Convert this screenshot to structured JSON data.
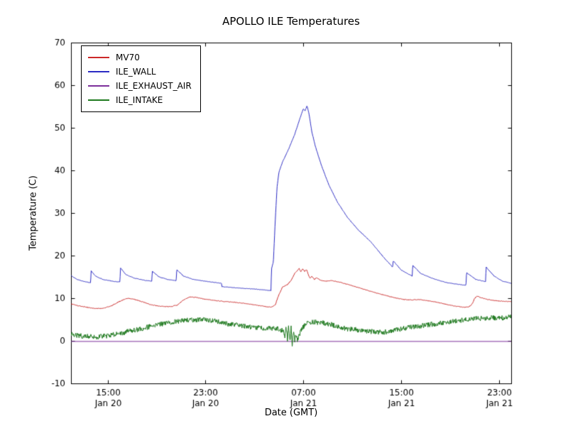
{
  "chart_data": {
    "type": "line",
    "title": "APOLLO ILE Temperatures",
    "xlabel": "Date (GMT)",
    "ylabel": "Temperature (C)",
    "x_unit": "hours since Jan 20 00:00 GMT",
    "x_range": [
      12,
      48
    ],
    "y_range": [
      -10,
      70
    ],
    "grid": false,
    "legend_position": "upper left",
    "yticks": [
      -10,
      0,
      10,
      20,
      30,
      40,
      50,
      60,
      70
    ],
    "xticks": [
      {
        "x": 15,
        "time": "15:00",
        "date": "Jan 20"
      },
      {
        "x": 23,
        "time": "23:00",
        "date": "Jan 20"
      },
      {
        "x": 31,
        "time": "07:00",
        "date": "Jan 21"
      },
      {
        "x": 39,
        "time": "15:00",
        "date": "Jan 21"
      },
      {
        "x": 47,
        "time": "23:00",
        "date": "Jan 21"
      }
    ],
    "series": [
      {
        "name": "MV70",
        "color": "#cc2929",
        "noise": 0.08,
        "points": [
          [
            12.0,
            8.7
          ],
          [
            12.6,
            8.2
          ],
          [
            13.2,
            7.9
          ],
          [
            13.9,
            7.6
          ],
          [
            14.6,
            7.6
          ],
          [
            15.3,
            8.2
          ],
          [
            16.0,
            9.3
          ],
          [
            16.6,
            10.0
          ],
          [
            17.1,
            9.8
          ],
          [
            17.8,
            9.2
          ],
          [
            18.5,
            8.5
          ],
          [
            19.3,
            8.1
          ],
          [
            20.1,
            8.0
          ],
          [
            20.7,
            8.4
          ],
          [
            21.2,
            9.6
          ],
          [
            21.7,
            10.3
          ],
          [
            22.2,
            10.2
          ],
          [
            22.9,
            9.8
          ],
          [
            23.7,
            9.5
          ],
          [
            24.6,
            9.2
          ],
          [
            25.5,
            9.0
          ],
          [
            26.4,
            8.7
          ],
          [
            27.3,
            8.3
          ],
          [
            28.0,
            8.0
          ],
          [
            28.4,
            7.9
          ],
          [
            28.7,
            8.4
          ],
          [
            29.0,
            10.8
          ],
          [
            29.3,
            12.6
          ],
          [
            29.7,
            13.2
          ],
          [
            30.0,
            14.2
          ],
          [
            30.3,
            15.8
          ],
          [
            30.5,
            16.4
          ],
          [
            30.65,
            17.0
          ],
          [
            30.8,
            16.2
          ],
          [
            30.95,
            16.9
          ],
          [
            31.1,
            16.3
          ],
          [
            31.25,
            16.8
          ],
          [
            31.4,
            15.6
          ],
          [
            31.55,
            14.7
          ],
          [
            31.7,
            15.2
          ],
          [
            31.9,
            14.4
          ],
          [
            32.1,
            14.8
          ],
          [
            32.4,
            14.2
          ],
          [
            32.8,
            14.0
          ],
          [
            33.3,
            14.1
          ],
          [
            33.8,
            13.9
          ],
          [
            34.3,
            13.5
          ],
          [
            34.9,
            13.0
          ],
          [
            35.6,
            12.4
          ],
          [
            36.3,
            11.8
          ],
          [
            37.0,
            11.2
          ],
          [
            37.8,
            10.6
          ],
          [
            38.5,
            10.1
          ],
          [
            39.2,
            9.7
          ],
          [
            39.9,
            9.6
          ],
          [
            40.5,
            9.7
          ],
          [
            41.2,
            9.4
          ],
          [
            42.0,
            9.0
          ],
          [
            42.8,
            8.5
          ],
          [
            43.5,
            8.1
          ],
          [
            44.1,
            7.9
          ],
          [
            44.5,
            7.9
          ],
          [
            44.8,
            8.6
          ],
          [
            45.0,
            9.9
          ],
          [
            45.2,
            10.5
          ],
          [
            45.5,
            10.2
          ],
          [
            45.9,
            9.8
          ],
          [
            46.5,
            9.5
          ],
          [
            47.2,
            9.3
          ],
          [
            48.0,
            9.2
          ]
        ]
      },
      {
        "name": "ILE_WALL",
        "color": "#2b2bc4",
        "noise": 0.06,
        "points": [
          [
            12.0,
            15.3
          ],
          [
            12.5,
            14.4
          ],
          [
            13.1,
            13.9
          ],
          [
            13.6,
            13.6
          ],
          [
            13.65,
            16.4
          ],
          [
            14.0,
            15.2
          ],
          [
            14.6,
            14.4
          ],
          [
            15.4,
            14.0
          ],
          [
            16.0,
            13.8
          ],
          [
            16.05,
            17.1
          ],
          [
            16.5,
            15.5
          ],
          [
            17.2,
            14.7
          ],
          [
            18.0,
            14.2
          ],
          [
            18.6,
            14.0
          ],
          [
            18.65,
            16.3
          ],
          [
            19.2,
            15.0
          ],
          [
            19.9,
            14.4
          ],
          [
            20.6,
            14.1
          ],
          [
            20.65,
            16.7
          ],
          [
            21.2,
            15.2
          ],
          [
            21.9,
            14.5
          ],
          [
            22.7,
            14.1
          ],
          [
            23.5,
            13.8
          ],
          [
            24.3,
            13.5
          ],
          [
            24.35,
            12.7
          ],
          [
            25.2,
            12.5
          ],
          [
            26.2,
            12.3
          ],
          [
            27.2,
            12.1
          ],
          [
            28.0,
            11.9
          ],
          [
            28.35,
            11.8
          ],
          [
            28.4,
            16.9
          ],
          [
            28.55,
            18.5
          ],
          [
            28.7,
            28.0
          ],
          [
            28.85,
            36.0
          ],
          [
            29.0,
            39.5
          ],
          [
            29.3,
            42.0
          ],
          [
            29.8,
            45.0
          ],
          [
            30.3,
            48.5
          ],
          [
            30.7,
            52.0
          ],
          [
            31.0,
            54.5
          ],
          [
            31.15,
            54.0
          ],
          [
            31.3,
            55.2
          ],
          [
            31.45,
            53.5
          ],
          [
            31.7,
            49.0
          ],
          [
            32.0,
            45.5
          ],
          [
            32.5,
            41.0
          ],
          [
            33.1,
            36.5
          ],
          [
            33.8,
            32.5
          ],
          [
            34.6,
            29.0
          ],
          [
            35.5,
            26.0
          ],
          [
            36.5,
            23.3
          ],
          [
            37.6,
            19.5
          ],
          [
            38.3,
            17.3
          ],
          [
            38.35,
            18.8
          ],
          [
            39.0,
            16.6
          ],
          [
            39.9,
            15.2
          ],
          [
            39.95,
            17.7
          ],
          [
            40.6,
            15.8
          ],
          [
            41.6,
            14.6
          ],
          [
            42.8,
            13.6
          ],
          [
            43.8,
            13.2
          ],
          [
            44.3,
            13.0
          ],
          [
            44.35,
            16.0
          ],
          [
            45.1,
            14.4
          ],
          [
            45.9,
            13.9
          ],
          [
            45.95,
            17.3
          ],
          [
            46.6,
            15.2
          ],
          [
            47.3,
            14.0
          ],
          [
            48.0,
            13.5
          ]
        ]
      },
      {
        "name": "ILE_EXHAUST_AIR",
        "color": "#7d2f9b",
        "noise": 0,
        "points": [
          [
            12.0,
            -0.15
          ],
          [
            48.0,
            -0.15
          ]
        ]
      },
      {
        "name": "ILE_INTAKE",
        "color": "#1f7a1f",
        "noise": 0.6,
        "points": [
          [
            12.0,
            1.5
          ],
          [
            12.6,
            1.2
          ],
          [
            13.3,
            1.0
          ],
          [
            14.0,
            0.9
          ],
          [
            14.8,
            1.1
          ],
          [
            15.5,
            1.5
          ],
          [
            16.2,
            1.9
          ],
          [
            17.0,
            2.4
          ],
          [
            17.8,
            2.9
          ],
          [
            18.6,
            3.4
          ],
          [
            19.4,
            3.9
          ],
          [
            20.1,
            4.3
          ],
          [
            20.9,
            4.6
          ],
          [
            21.6,
            4.8
          ],
          [
            22.4,
            5.0
          ],
          [
            23.1,
            5.0
          ],
          [
            23.9,
            4.6
          ],
          [
            24.6,
            4.1
          ],
          [
            25.4,
            3.7
          ],
          [
            26.2,
            3.4
          ],
          [
            27.1,
            3.1
          ],
          [
            28.0,
            3.0
          ],
          [
            28.7,
            2.9
          ],
          [
            29.1,
            2.7
          ],
          [
            29.35,
            2.2
          ],
          [
            29.5,
            0.9
          ],
          [
            29.6,
            3.1
          ],
          [
            29.7,
            0.4
          ],
          [
            29.8,
            3.7
          ],
          [
            29.9,
            -0.7
          ],
          [
            30.0,
            3.3
          ],
          [
            30.1,
            -1.2
          ],
          [
            30.2,
            2.6
          ],
          [
            30.3,
            0.1
          ],
          [
            30.4,
            1.4
          ],
          [
            30.5,
            0.3
          ],
          [
            30.65,
            1.1
          ],
          [
            30.8,
            2.4
          ],
          [
            31.0,
            3.3
          ],
          [
            31.2,
            4.0
          ],
          [
            31.5,
            4.4
          ],
          [
            32.0,
            4.4
          ],
          [
            32.6,
            4.2
          ],
          [
            33.2,
            3.9
          ],
          [
            33.8,
            3.4
          ],
          [
            34.4,
            2.9
          ],
          [
            35.0,
            2.7
          ],
          [
            35.7,
            2.5
          ],
          [
            36.4,
            2.2
          ],
          [
            37.1,
            2.0
          ],
          [
            37.8,
            2.1
          ],
          [
            38.5,
            2.5
          ],
          [
            39.2,
            2.9
          ],
          [
            39.9,
            3.2
          ],
          [
            40.6,
            3.5
          ],
          [
            41.3,
            3.8
          ],
          [
            42.1,
            4.1
          ],
          [
            43.0,
            4.5
          ],
          [
            43.9,
            4.8
          ],
          [
            44.8,
            5.1
          ],
          [
            45.7,
            5.3
          ],
          [
            46.6,
            5.4
          ],
          [
            47.3,
            5.4
          ],
          [
            48.0,
            5.6
          ]
        ]
      }
    ]
  }
}
